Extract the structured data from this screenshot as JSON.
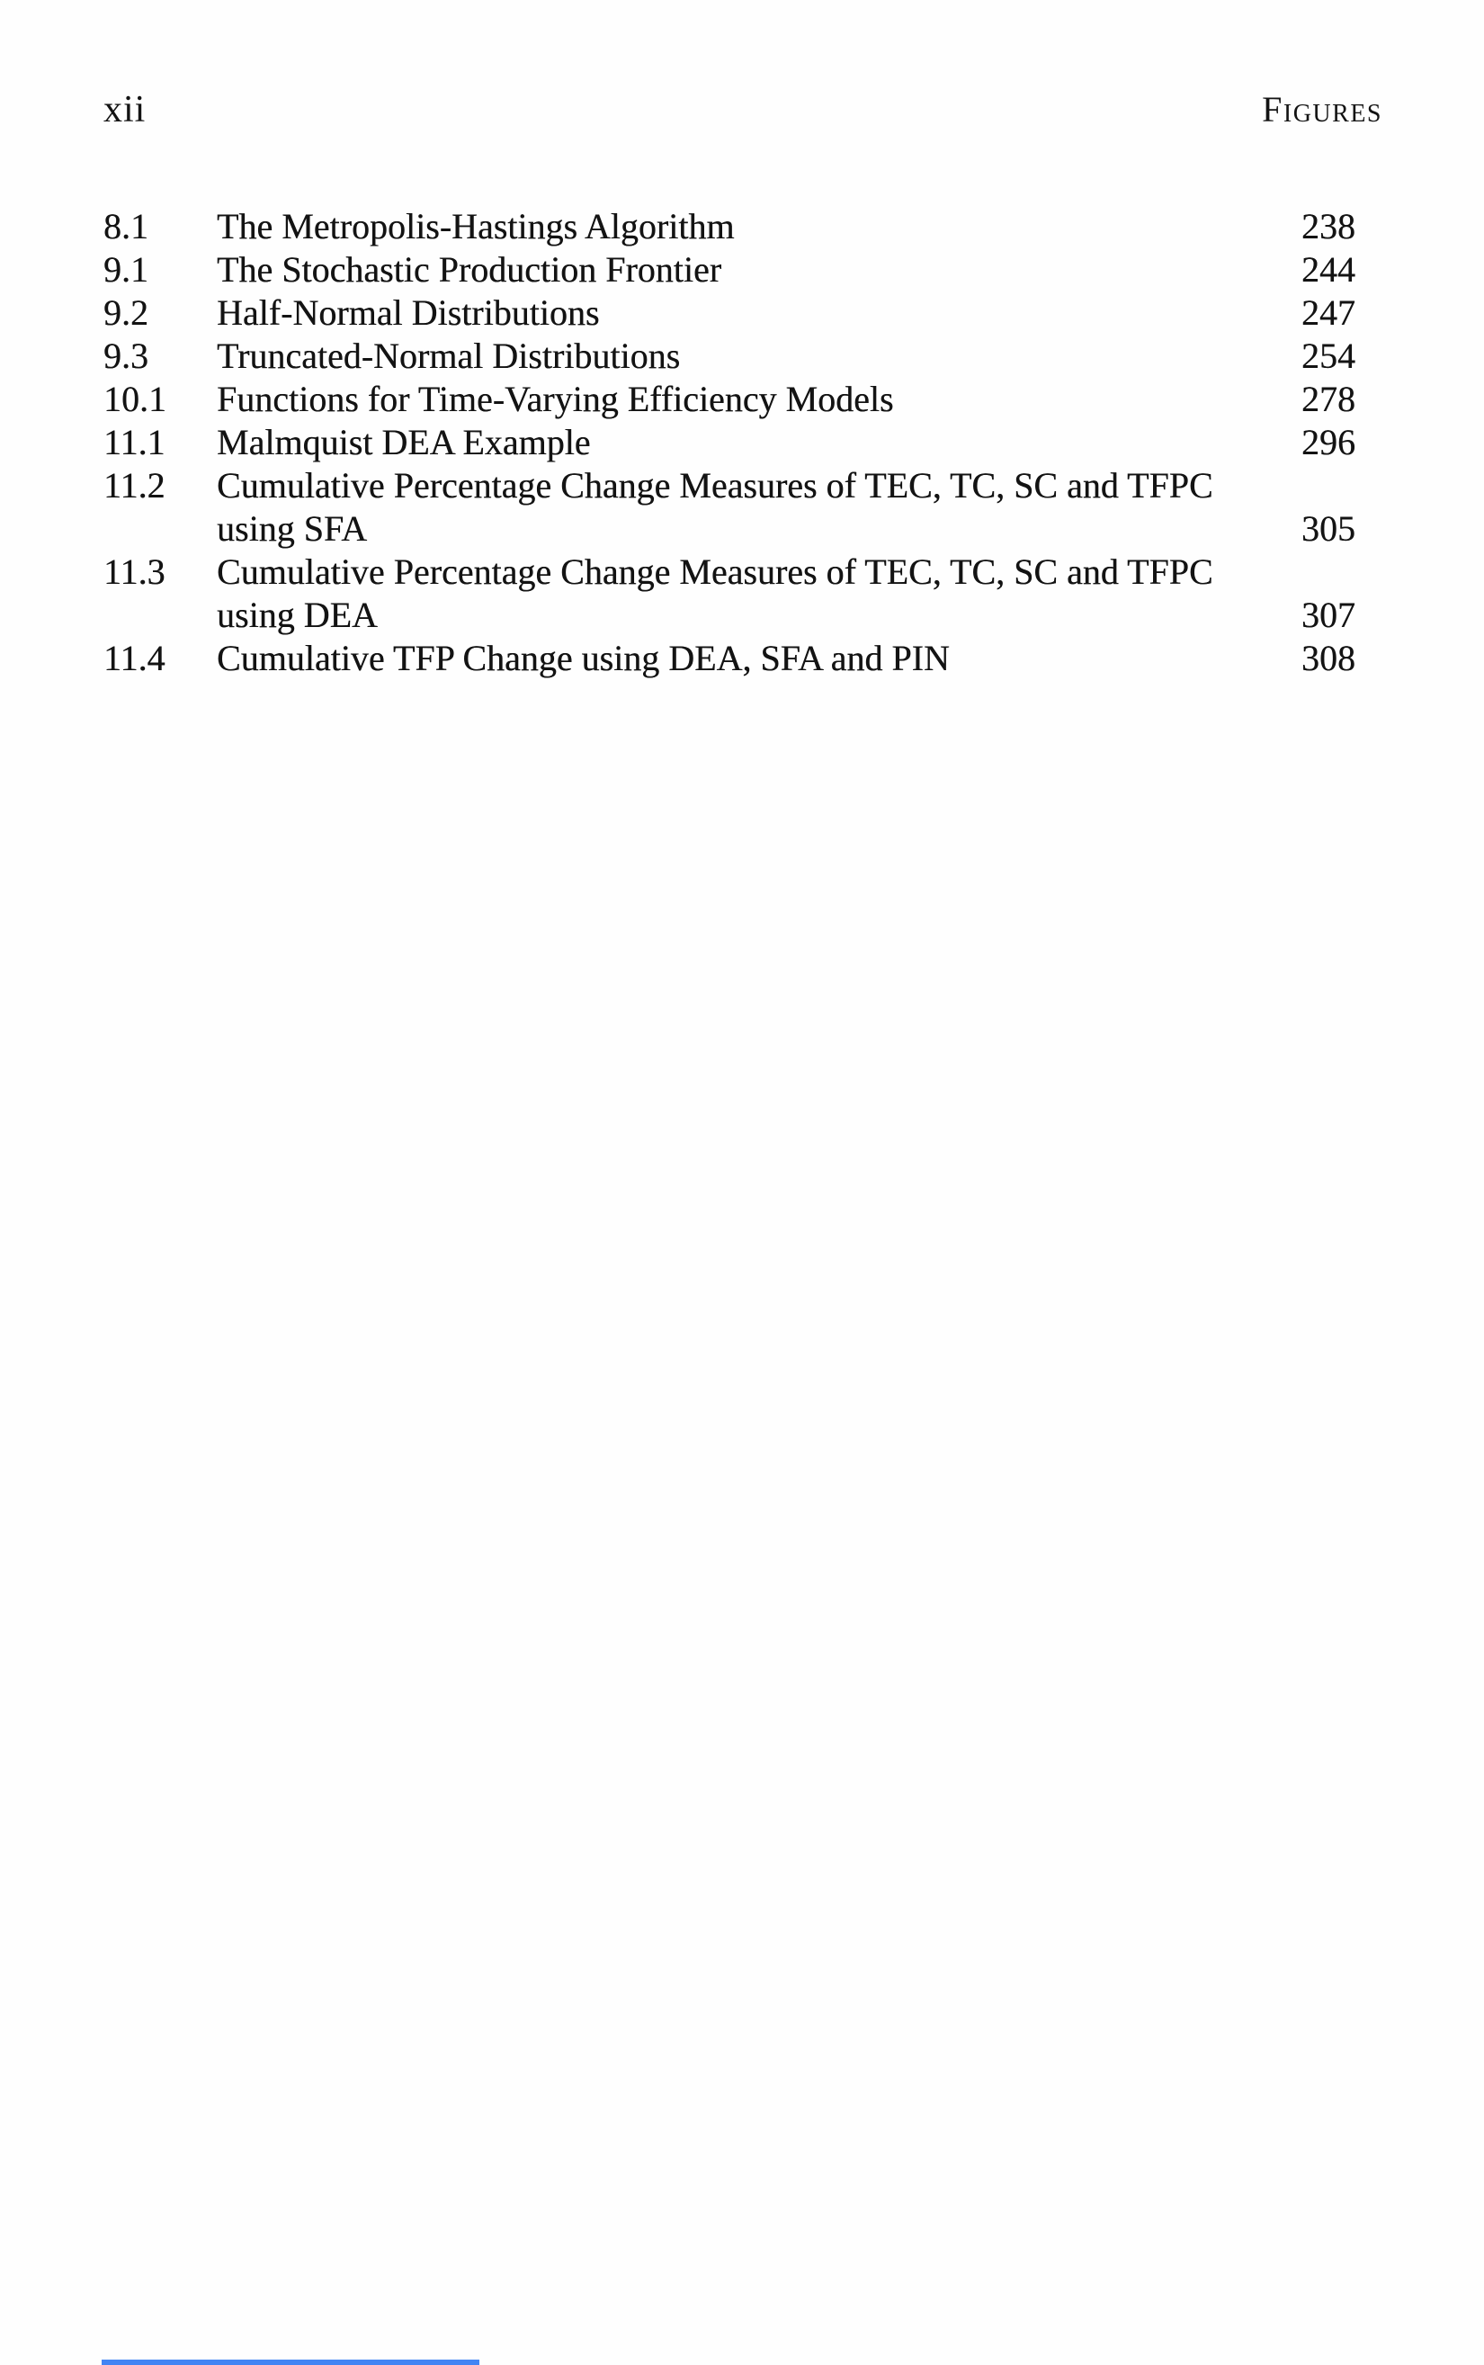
{
  "page": {
    "folio": "xii",
    "running_head": "Figures"
  },
  "figures_list": {
    "entries": [
      {
        "number": "8.1",
        "title_lines": [
          "The Metropolis-Hastings Algorithm"
        ],
        "page": "238"
      },
      {
        "number": "9.1",
        "title_lines": [
          "The Stochastic Production Frontier"
        ],
        "page": "244"
      },
      {
        "number": "9.2",
        "title_lines": [
          "Half-Normal Distributions"
        ],
        "page": "247"
      },
      {
        "number": "9.3",
        "title_lines": [
          "Truncated-Normal Distributions"
        ],
        "page": "254"
      },
      {
        "number": "10.1",
        "title_lines": [
          "Functions for Time-Varying Efficiency Models"
        ],
        "page": "278"
      },
      {
        "number": "11.1",
        "title_lines": [
          "Malmquist DEA Example"
        ],
        "page": "296"
      },
      {
        "number": "11.2",
        "title_lines": [
          "Cumulative Percentage Change Measures of TEC, TC, SC and TFPC",
          "using SFA"
        ],
        "page": "305"
      },
      {
        "number": "11.3",
        "title_lines": [
          "Cumulative Percentage Change Measures of TEC, TC, SC and TFPC",
          "using DEA"
        ],
        "page": "307"
      },
      {
        "number": "11.4",
        "title_lines": [
          "Cumulative TFP Change using DEA, SFA and PIN"
        ],
        "page": "308"
      }
    ]
  },
  "decor": {
    "bottom_bar_color": "#4285f4",
    "ink_color": "#131313",
    "paper_color": "#fefefe"
  }
}
